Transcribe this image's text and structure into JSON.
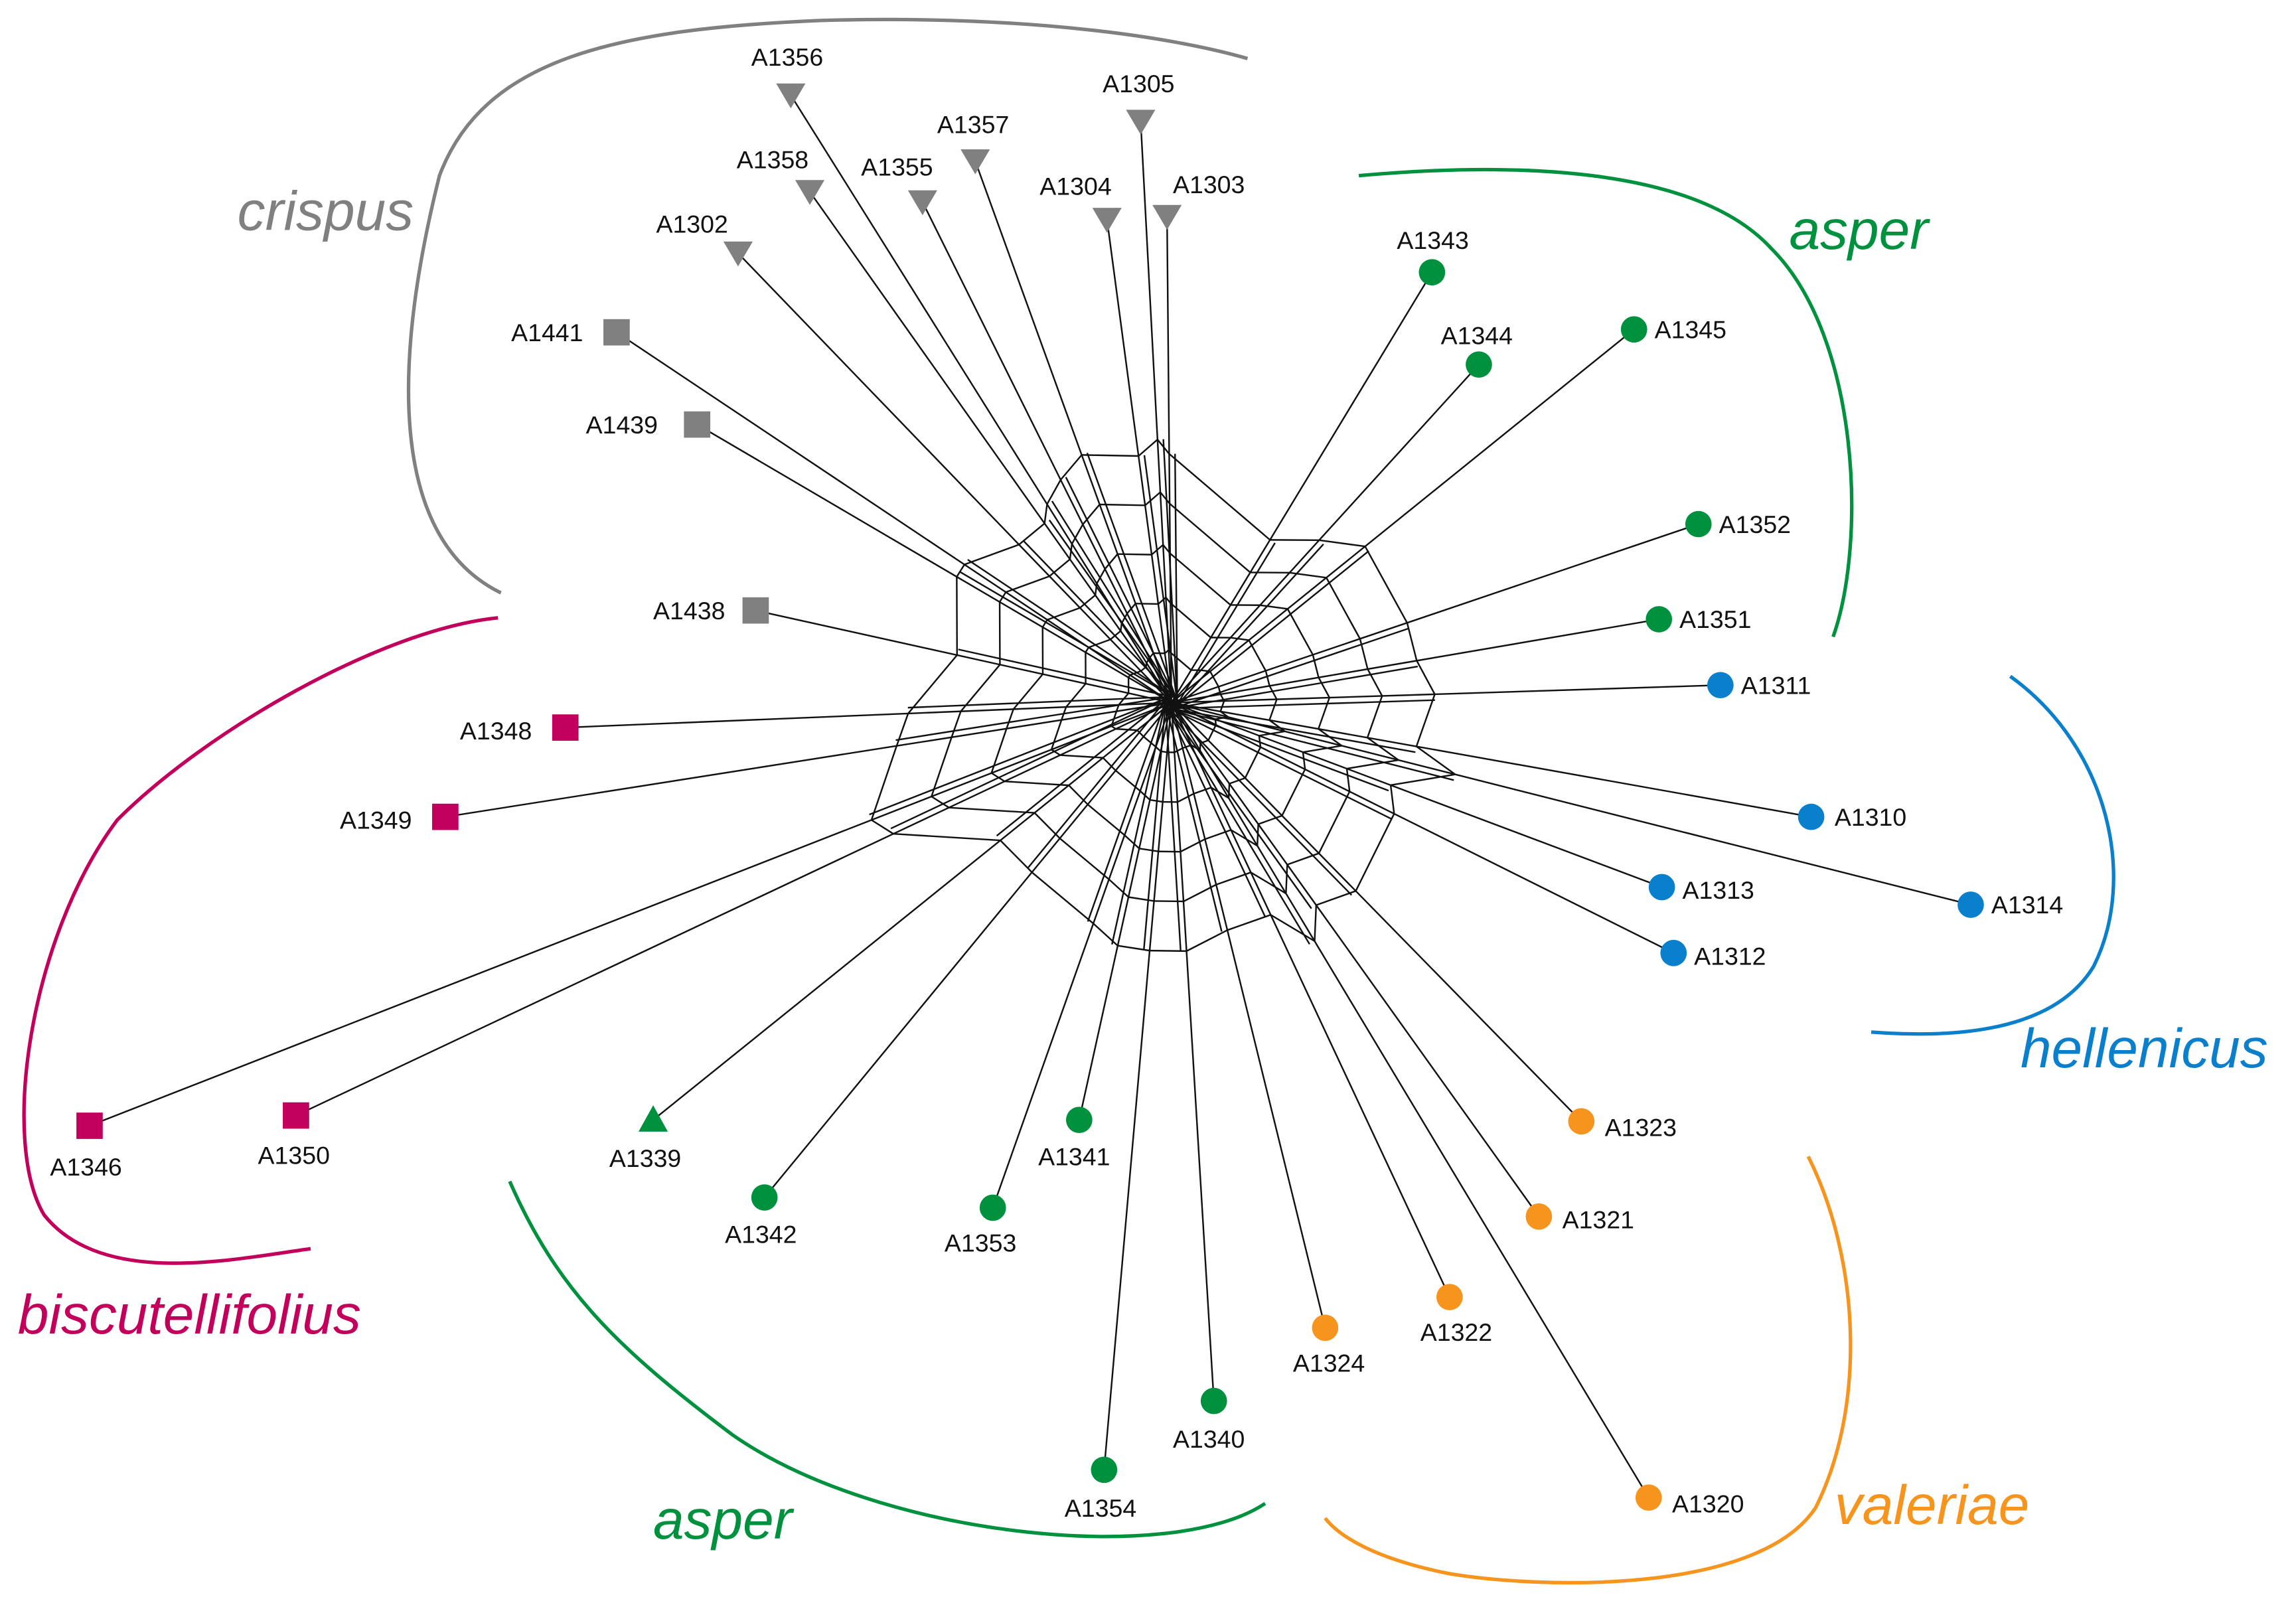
{
  "colors": {
    "crispus": "#808080",
    "asper": "#00913f",
    "biscutellifolius": "#c2005c",
    "hellenicus": "#0a7fcc",
    "valeriae": "#f7941d"
  },
  "groups": [
    {
      "id": "crispus",
      "label": "crispus"
    },
    {
      "id": "asper_top",
      "label": "asper",
      "color_key": "asper"
    },
    {
      "id": "hellenicus",
      "label": "hellenicus"
    },
    {
      "id": "valeriae",
      "label": "valeriae"
    },
    {
      "id": "asper_bottom",
      "label": "asper",
      "color_key": "asper"
    },
    {
      "id": "biscutellifolius",
      "label": "biscutellifolius"
    }
  ],
  "nodes": [
    {
      "label": "A1356",
      "group": "crispus",
      "shape": "triangle-down"
    },
    {
      "label": "A1358",
      "group": "crispus",
      "shape": "triangle-down"
    },
    {
      "label": "A1355",
      "group": "crispus",
      "shape": "triangle-down"
    },
    {
      "label": "A1357",
      "group": "crispus",
      "shape": "triangle-down"
    },
    {
      "label": "A1305",
      "group": "crispus",
      "shape": "triangle-down"
    },
    {
      "label": "A1304",
      "group": "crispus",
      "shape": "triangle-down"
    },
    {
      "label": "A1303",
      "group": "crispus",
      "shape": "triangle-down"
    },
    {
      "label": "A1302",
      "group": "crispus",
      "shape": "triangle-down"
    },
    {
      "label": "A1441",
      "group": "crispus",
      "shape": "square"
    },
    {
      "label": "A1439",
      "group": "crispus",
      "shape": "square"
    },
    {
      "label": "A1438",
      "group": "crispus",
      "shape": "square"
    },
    {
      "label": "A1343",
      "group": "asper",
      "shape": "circle"
    },
    {
      "label": "A1344",
      "group": "asper",
      "shape": "circle"
    },
    {
      "label": "A1345",
      "group": "asper",
      "shape": "circle"
    },
    {
      "label": "A1352",
      "group": "asper",
      "shape": "circle"
    },
    {
      "label": "A1351",
      "group": "asper",
      "shape": "circle"
    },
    {
      "label": "A1311",
      "group": "hellenicus",
      "shape": "circle"
    },
    {
      "label": "A1310",
      "group": "hellenicus",
      "shape": "circle"
    },
    {
      "label": "A1313",
      "group": "hellenicus",
      "shape": "circle"
    },
    {
      "label": "A1314",
      "group": "hellenicus",
      "shape": "circle"
    },
    {
      "label": "A1312",
      "group": "hellenicus",
      "shape": "circle"
    },
    {
      "label": "A1323",
      "group": "valeriae",
      "shape": "circle"
    },
    {
      "label": "A1321",
      "group": "valeriae",
      "shape": "circle"
    },
    {
      "label": "A1322",
      "group": "valeriae",
      "shape": "circle"
    },
    {
      "label": "A1324",
      "group": "valeriae",
      "shape": "circle"
    },
    {
      "label": "A1320",
      "group": "valeriae",
      "shape": "circle"
    },
    {
      "label": "A1340",
      "group": "asper",
      "shape": "circle"
    },
    {
      "label": "A1354",
      "group": "asper",
      "shape": "circle"
    },
    {
      "label": "A1341",
      "group": "asper",
      "shape": "circle"
    },
    {
      "label": "A1353",
      "group": "asper",
      "shape": "circle"
    },
    {
      "label": "A1342",
      "group": "asper",
      "shape": "circle"
    },
    {
      "label": "A1339",
      "group": "asper",
      "shape": "triangle-up"
    },
    {
      "label": "A1350",
      "group": "biscutellifolius",
      "shape": "square"
    },
    {
      "label": "A1346",
      "group": "biscutellifolius",
      "shape": "square"
    },
    {
      "label": "A1349",
      "group": "biscutellifolius",
      "shape": "square"
    },
    {
      "label": "A1348",
      "group": "biscutellifolius",
      "shape": "square"
    }
  ]
}
